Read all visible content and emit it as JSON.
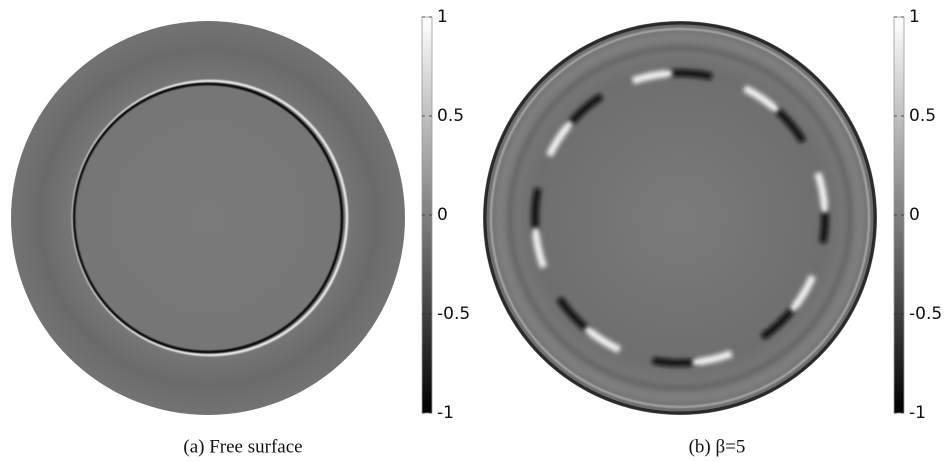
{
  "panels": [
    {
      "caption": "(a) Free surface",
      "colorbar": {
        "lim": [
          -1,
          1
        ],
        "ticks": [
          -1,
          -0.5,
          0,
          0.5,
          1
        ]
      }
    },
    {
      "caption": "(b) β=5",
      "colorbar": {
        "lim": [
          -1,
          1
        ],
        "ticks": [
          -1,
          -0.5,
          0,
          0.5,
          1
        ]
      }
    }
  ]
}
